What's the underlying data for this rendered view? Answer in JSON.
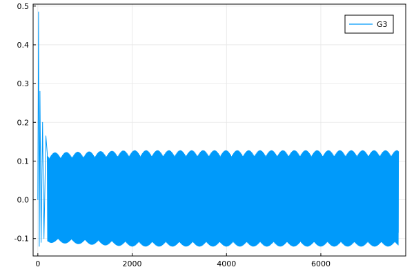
{
  "chart_data": {
    "type": "line",
    "title": "",
    "xlabel": "",
    "ylabel": "",
    "xlim": [
      -100,
      7800
    ],
    "ylim": [
      -0.145,
      0.505
    ],
    "x_ticks": [
      0,
      2000,
      4000,
      6000
    ],
    "x_tick_labels": [
      "0",
      "2000",
      "4000",
      "6000"
    ],
    "y_ticks": [
      -0.1,
      0.0,
      0.1,
      0.2,
      0.3,
      0.4,
      0.5
    ],
    "y_tick_labels": [
      "-0.1",
      "0.0",
      "0.1",
      "0.2",
      "0.3",
      "0.4",
      "0.5"
    ],
    "grid": true,
    "legend": {
      "position": "top-right",
      "entries": [
        "G3"
      ]
    },
    "series": [
      {
        "name": "G3",
        "color": "#009AFA",
        "description_points": [
          {
            "x": 0,
            "y": 0.0
          },
          {
            "x": 15,
            "y": 0.485
          },
          {
            "x": 30,
            "y": -0.12
          },
          {
            "x": 45,
            "y": 0.28
          },
          {
            "x": 70,
            "y": -0.11
          },
          {
            "x": 100,
            "y": 0.2
          },
          {
            "x": 130,
            "y": -0.1
          },
          {
            "x": 170,
            "y": 0.165
          },
          {
            "x": 200,
            "y": 0.12
          },
          {
            "x": 300,
            "y": -0.105
          },
          {
            "x": 400,
            "y": 0.117
          },
          {
            "x": 1000,
            "y": -0.115
          },
          {
            "x": 2000,
            "y": 0.125
          },
          {
            "x": 4000,
            "y": -0.118
          },
          {
            "x": 6000,
            "y": 0.127
          },
          {
            "x": 7650,
            "y": -0.12
          }
        ],
        "x_max": 7650,
        "steady_max": 0.127,
        "steady_min": -0.12
      }
    ]
  }
}
